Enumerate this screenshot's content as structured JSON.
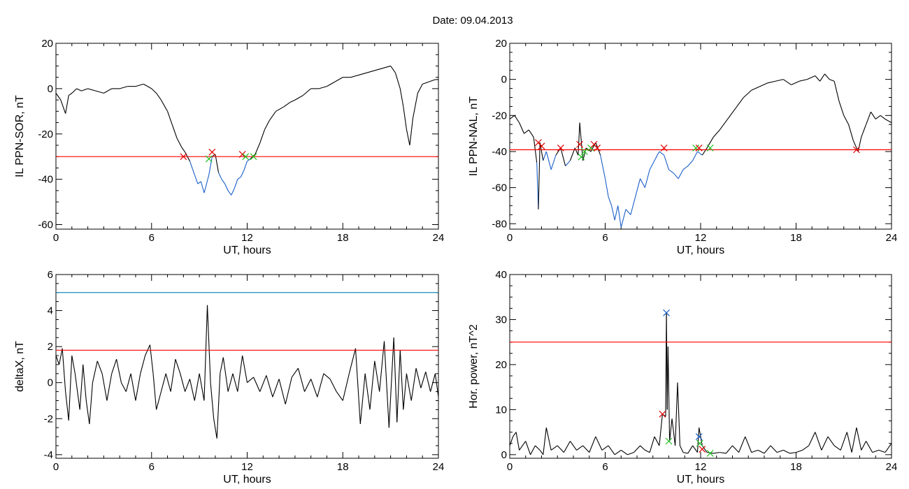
{
  "figure": {
    "title": "Date:  09.04.2013"
  },
  "colors": {
    "data_line": "#000000",
    "below_threshold_line": "#1a5fc8",
    "threshold_line": "#ff0000",
    "upper_line": "#1a8fb8",
    "marker_red": "#e00000",
    "marker_green": "#22c222",
    "marker_blue": "#1a5fc8"
  },
  "chart_data": [
    {
      "id": "sor",
      "type": "line",
      "xlabel": "UT, hours",
      "ylabel": "IL PPN-SOR, nT",
      "xlim": [
        0,
        24
      ],
      "ylim": [
        -62,
        20
      ],
      "xticks": [
        0,
        6,
        12,
        18,
        24
      ],
      "yticks": [
        20,
        0,
        -20,
        -40,
        -60
      ],
      "threshold": -30,
      "highlight_below_threshold": true,
      "x": [
        0,
        0.3,
        0.6,
        0.8,
        1,
        1.3,
        1.6,
        2,
        2.5,
        3,
        3.5,
        4,
        4.5,
        5,
        5.5,
        6,
        6.3,
        6.6,
        7,
        7.3,
        7.6,
        7.9,
        8.1,
        8.4,
        8.7,
        8.9,
        9.1,
        9.3,
        9.6,
        9.8,
        10,
        10.2,
        10.4,
        10.6,
        10.8,
        11,
        11.2,
        11.4,
        11.6,
        11.8,
        12,
        12.2,
        12.5,
        12.8,
        13.1,
        13.4,
        13.8,
        14.3,
        14.7,
        15,
        15.5,
        16,
        16.5,
        17,
        17.5,
        18,
        18.5,
        19,
        19.5,
        20,
        20.5,
        21,
        21.3,
        21.6,
        21.8,
        22,
        22.2,
        22.4,
        22.7,
        23,
        23.4,
        23.8,
        24
      ],
      "values": [
        -2,
        -5,
        -11,
        -3,
        -2,
        0,
        -1,
        0,
        -1,
        -2,
        0,
        0,
        1,
        1,
        2,
        0,
        -2,
        -5,
        -10,
        -16,
        -22,
        -26,
        -28,
        -32,
        -38,
        -42,
        -41,
        -46,
        -38,
        -30,
        -29,
        -37,
        -40,
        -42,
        -45,
        -47,
        -44,
        -40,
        -39,
        -36,
        -32,
        -31,
        -29,
        -24,
        -18,
        -14,
        -10,
        -8,
        -6,
        -5,
        -3,
        0,
        0,
        1,
        3,
        5,
        5,
        6,
        7,
        8,
        9,
        10,
        7,
        0,
        -8,
        -18,
        -25,
        -13,
        -2,
        2,
        3,
        4,
        4
      ],
      "markers": [
        {
          "x": 8,
          "y": -30,
          "color": "red"
        },
        {
          "x": 9.6,
          "y": -31,
          "color": "green"
        },
        {
          "x": 9.8,
          "y": -28,
          "color": "red"
        },
        {
          "x": 11.7,
          "y": -29,
          "color": "red"
        },
        {
          "x": 11.9,
          "y": -30,
          "color": "green"
        },
        {
          "x": 12.4,
          "y": -30,
          "color": "green"
        }
      ]
    },
    {
      "id": "nal",
      "type": "line",
      "xlabel": "UT, hours",
      "ylabel": "IL PPN-NAL, nT",
      "xlim": [
        0,
        24
      ],
      "ylim": [
        -83,
        20
      ],
      "xticks": [
        0,
        6,
        12,
        18,
        24
      ],
      "yticks": [
        20,
        0,
        -20,
        -40,
        -60,
        -80
      ],
      "threshold": -39,
      "highlight_below_threshold": true,
      "x": [
        0,
        0.3,
        0.6,
        0.9,
        1.2,
        1.5,
        1.7,
        1.8,
        1.9,
        2.1,
        2.3,
        2.6,
        2.9,
        3.2,
        3.5,
        3.8,
        4.1,
        4.3,
        4.4,
        4.6,
        4.8,
        5.1,
        5.4,
        5.7,
        6,
        6.2,
        6.4,
        6.6,
        6.8,
        7,
        7.3,
        7.6,
        7.9,
        8.2,
        8.5,
        8.8,
        9.1,
        9.4,
        9.7,
        10,
        10.3,
        10.6,
        10.9,
        11.2,
        11.5,
        11.8,
        12.1,
        12.4,
        12.8,
        13.2,
        13.7,
        14.2,
        14.7,
        15.2,
        15.7,
        16.2,
        16.7,
        17.2,
        17.7,
        18.2,
        18.7,
        19.2,
        19.5,
        19.8,
        20.1,
        20.4,
        20.7,
        21,
        21.3,
        21.6,
        21.9,
        22.1,
        22.4,
        22.7,
        23,
        23.3,
        23.6,
        24
      ],
      "values": [
        -22,
        -20,
        -24,
        -30,
        -28,
        -32,
        -46,
        -72,
        -35,
        -45,
        -40,
        -50,
        -42,
        -38,
        -48,
        -45,
        -38,
        -42,
        -24,
        -45,
        -38,
        -40,
        -35,
        -42,
        -55,
        -65,
        -70,
        -78,
        -70,
        -82,
        -72,
        -75,
        -65,
        -55,
        -60,
        -50,
        -45,
        -40,
        -42,
        -50,
        -52,
        -55,
        -50,
        -48,
        -45,
        -40,
        -42,
        -38,
        -32,
        -28,
        -22,
        -16,
        -10,
        -6,
        -4,
        -2,
        -1,
        0,
        -3,
        -1,
        0,
        2,
        -1,
        3,
        0,
        -1,
        -12,
        -20,
        -25,
        -34,
        -40,
        -32,
        -25,
        -18,
        -22,
        -20,
        -22,
        -24
      ],
      "markers": [
        {
          "x": 1.8,
          "y": -35,
          "color": "red"
        },
        {
          "x": 2,
          "y": -37,
          "color": "red"
        },
        {
          "x": 3.2,
          "y": -38,
          "color": "red"
        },
        {
          "x": 4.4,
          "y": -36,
          "color": "red"
        },
        {
          "x": 4.5,
          "y": -43,
          "color": "green"
        },
        {
          "x": 4.7,
          "y": -40,
          "color": "green"
        },
        {
          "x": 5.1,
          "y": -38,
          "color": "green"
        },
        {
          "x": 5.3,
          "y": -36,
          "color": "red"
        },
        {
          "x": 5.5,
          "y": -38,
          "color": "red"
        },
        {
          "x": 9.7,
          "y": -38,
          "color": "red"
        },
        {
          "x": 11.7,
          "y": -38,
          "color": "green"
        },
        {
          "x": 11.9,
          "y": -38,
          "color": "red"
        },
        {
          "x": 12.6,
          "y": -38,
          "color": "green"
        },
        {
          "x": 21.8,
          "y": -39,
          "color": "red"
        }
      ]
    },
    {
      "id": "deltax",
      "type": "line",
      "xlabel": "UT, hours",
      "ylabel": "deltaX, nT",
      "xlim": [
        0,
        24
      ],
      "ylim": [
        -4.2,
        6
      ],
      "xticks": [
        0,
        6,
        12,
        18,
        24
      ],
      "yticks": [
        6,
        4,
        2,
        0,
        -2,
        -4
      ],
      "threshold": 1.8,
      "upper_threshold": 5,
      "x": [
        0,
        0.2,
        0.4,
        0.6,
        0.8,
        1,
        1.2,
        1.5,
        1.7,
        1.9,
        2.1,
        2.3,
        2.6,
        2.9,
        3.2,
        3.5,
        3.8,
        4.1,
        4.4,
        4.7,
        5,
        5.3,
        5.6,
        5.9,
        6.1,
        6.3,
        6.6,
        6.9,
        7.2,
        7.5,
        7.8,
        8.1,
        8.4,
        8.7,
        9,
        9.3,
        9.5,
        9.7,
        9.9,
        10.1,
        10.3,
        10.5,
        10.8,
        11.1,
        11.4,
        11.7,
        12,
        12.4,
        12.8,
        13.2,
        13.6,
        14,
        14.4,
        14.8,
        15.2,
        15.6,
        16,
        16.4,
        16.8,
        17.2,
        17.6,
        18,
        18.4,
        18.8,
        19.1,
        19.4,
        19.7,
        20,
        20.3,
        20.6,
        20.9,
        21.2,
        21.4,
        21.6,
        21.8,
        22,
        22.3,
        22.6,
        22.9,
        23.2,
        23.5,
        23.8,
        24
      ],
      "values": [
        1.5,
        1,
        1.9,
        -0.5,
        -2.1,
        1.5,
        0.5,
        -1.5,
        1,
        -1,
        -2.3,
        0,
        1.2,
        0.5,
        -1,
        0.5,
        1.3,
        0,
        -0.5,
        0.5,
        -1,
        0.5,
        1.5,
        2.1,
        0.5,
        -1.5,
        -0.5,
        0.5,
        -0.5,
        1.3,
        0.5,
        -0.5,
        0.2,
        -1,
        0.5,
        -1,
        4.3,
        0,
        -2,
        -3.1,
        0.5,
        1.4,
        -0.5,
        0.5,
        -0.5,
        1.5,
        0,
        0.3,
        -0.5,
        0.4,
        -0.8,
        0.2,
        -1.2,
        0.3,
        0.8,
        -0.5,
        0.2,
        -0.8,
        0.5,
        0.2,
        -0.5,
        -1,
        0.5,
        1.9,
        -2.3,
        0.5,
        -1.5,
        1.2,
        -0.5,
        2.3,
        -2.5,
        2.5,
        -2.2,
        1.8,
        -1.5,
        0.5,
        -1,
        0.8,
        -0.3,
        0.6,
        -0.5,
        0.5,
        -0.8
      ]
    },
    {
      "id": "power",
      "type": "line",
      "xlabel": "UT, hours",
      "ylabel": "Hor. power, nT^2",
      "xlim": [
        0,
        24
      ],
      "ylim": [
        -0.8,
        40
      ],
      "xticks": [
        0,
        6,
        12,
        18,
        24
      ],
      "yticks": [
        40,
        30,
        20,
        10,
        0
      ],
      "threshold": 25,
      "x": [
        0,
        0.2,
        0.4,
        0.6,
        0.8,
        1,
        1.3,
        1.6,
        1.9,
        2.1,
        2.3,
        2.6,
        3,
        3.4,
        3.8,
        4.2,
        4.6,
        5,
        5.4,
        5.8,
        6.2,
        6.6,
        7,
        7.4,
        7.8,
        8.2,
        8.5,
        8.8,
        9.1,
        9.4,
        9.6,
        9.8,
        9.85,
        9.9,
        9.95,
        10.05,
        10.2,
        10.4,
        10.55,
        10.7,
        10.9,
        11.2,
        11.5,
        11.8,
        11.9,
        12.1,
        12.4,
        12.8,
        13.2,
        13.6,
        14,
        14.4,
        14.8,
        15.2,
        15.6,
        16,
        16.4,
        16.8,
        17.2,
        17.6,
        18,
        18.4,
        18.8,
        19.2,
        19.6,
        20,
        20.4,
        20.8,
        21.2,
        21.5,
        21.8,
        22.1,
        22.4,
        22.8,
        23.2,
        23.6,
        24
      ],
      "values": [
        2,
        4,
        5,
        1,
        2,
        3,
        0,
        2,
        1,
        0,
        6,
        1,
        2,
        0.5,
        3,
        1,
        2,
        0.5,
        4,
        1,
        2,
        0,
        1,
        0,
        0.5,
        2,
        1,
        0.5,
        4,
        2,
        9,
        8.5,
        31.5,
        10,
        24,
        3,
        8,
        2,
        16,
        2,
        0.5,
        0.3,
        2,
        0.5,
        6,
        2,
        0.5,
        0.3,
        0.5,
        0.3,
        2,
        0.5,
        4,
        0.5,
        1,
        0.3,
        2,
        0.5,
        1,
        0.3,
        0.5,
        1,
        2,
        5,
        1,
        4,
        2,
        1,
        5,
        0.5,
        6,
        1,
        3,
        0.5,
        1,
        0.5,
        2.5
      ],
      "markers": [
        {
          "x": 9.6,
          "y": 9,
          "color": "red"
        },
        {
          "x": 9.85,
          "y": 31.5,
          "color": "blue"
        },
        {
          "x": 10,
          "y": 3,
          "color": "green"
        },
        {
          "x": 11.9,
          "y": 4,
          "color": "blue"
        },
        {
          "x": 11.95,
          "y": 2.5,
          "color": "green"
        },
        {
          "x": 12.1,
          "y": 1.2,
          "color": "red"
        },
        {
          "x": 12.6,
          "y": 0.3,
          "color": "green"
        }
      ]
    }
  ]
}
